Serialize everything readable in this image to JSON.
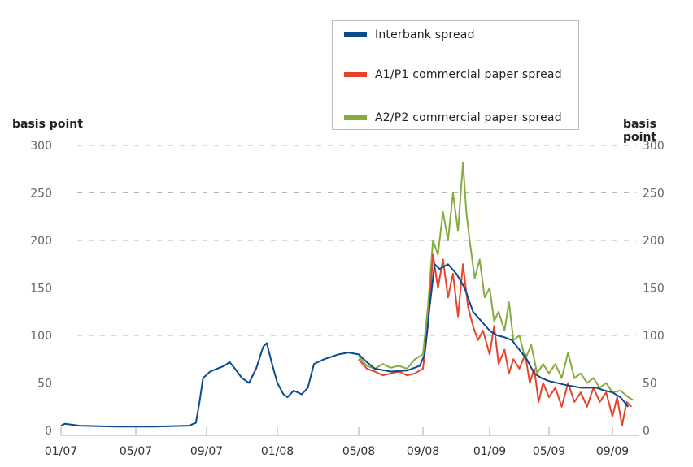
{
  "chart_data": {
    "type": "line",
    "title": "",
    "ylabel_left": "basis point",
    "ylabel_right": "basis point",
    "xlabel": "",
    "ylim": [
      0,
      300
    ],
    "yticks": [
      "0",
      "50",
      "100",
      "150",
      "200",
      "250",
      "300"
    ],
    "ytick_values": [
      0,
      50,
      100,
      150,
      200,
      250,
      300
    ],
    "x_unit": "months since 01/2007",
    "xlim": [
      0,
      33.5
    ],
    "xticks": [
      {
        "label": "01/07",
        "month": 0
      },
      {
        "label": "05/07",
        "month": 4
      },
      {
        "label": "09/07",
        "month": 8
      },
      {
        "label": "01/08",
        "month": 12
      },
      {
        "label": "05/08",
        "month": 16
      },
      {
        "label": "09/08",
        "month": 20
      },
      {
        "label": "01/09",
        "month": 24
      },
      {
        "label": "05/09",
        "month": 28
      },
      {
        "label": "09/09",
        "month": 32
      }
    ],
    "grid": "horizontal dashed",
    "legend_position": "top-right",
    "series": [
      {
        "name": "Interbank spread",
        "color": "#0b4a8e",
        "points": [
          [
            0,
            5
          ],
          [
            0.2,
            7
          ],
          [
            1,
            5
          ],
          [
            3,
            4
          ],
          [
            5,
            4
          ],
          [
            7,
            5
          ],
          [
            7.4,
            8
          ],
          [
            7.6,
            30
          ],
          [
            7.8,
            55
          ],
          [
            8.2,
            62
          ],
          [
            8.6,
            65
          ],
          [
            9,
            68
          ],
          [
            9.3,
            72
          ],
          [
            9.6,
            65
          ],
          [
            10,
            55
          ],
          [
            10.4,
            50
          ],
          [
            10.8,
            65
          ],
          [
            11.2,
            88
          ],
          [
            11.4,
            92
          ],
          [
            11.7,
            70
          ],
          [
            12,
            50
          ],
          [
            12.3,
            38
          ],
          [
            12.5,
            35
          ],
          [
            12.8,
            42
          ],
          [
            13.2,
            38
          ],
          [
            13.5,
            45
          ],
          [
            13.8,
            70
          ],
          [
            14.3,
            75
          ],
          [
            15,
            80
          ],
          [
            15.5,
            82
          ],
          [
            16,
            80
          ],
          [
            16.5,
            72
          ],
          [
            17,
            65
          ],
          [
            18,
            62
          ],
          [
            19,
            63
          ],
          [
            19.8,
            68
          ],
          [
            20.1,
            80
          ],
          [
            20.4,
            130
          ],
          [
            20.7,
            175
          ],
          [
            21,
            170
          ],
          [
            21.5,
            175
          ],
          [
            22,
            165
          ],
          [
            22.5,
            150
          ],
          [
            23,
            125
          ],
          [
            23.5,
            115
          ],
          [
            24,
            105
          ],
          [
            24.5,
            100
          ],
          [
            25,
            98
          ],
          [
            25.5,
            95
          ],
          [
            26,
            85
          ],
          [
            26.5,
            75
          ],
          [
            27,
            60
          ],
          [
            27.5,
            55
          ],
          [
            28,
            52
          ],
          [
            29,
            48
          ],
          [
            30,
            45
          ],
          [
            31,
            45
          ],
          [
            31.5,
            42
          ],
          [
            32,
            40
          ],
          [
            32.5,
            35
          ],
          [
            33,
            25
          ]
        ]
      },
      {
        "name": "A1/P1 commercial paper spread",
        "color": "#e8432a",
        "points": [
          [
            16,
            75
          ],
          [
            16.5,
            65
          ],
          [
            17,
            62
          ],
          [
            17.5,
            58
          ],
          [
            18,
            60
          ],
          [
            18.5,
            62
          ],
          [
            19,
            58
          ],
          [
            19.5,
            60
          ],
          [
            20,
            65
          ],
          [
            20.3,
            110
          ],
          [
            20.6,
            185
          ],
          [
            20.9,
            150
          ],
          [
            21.2,
            180
          ],
          [
            21.5,
            140
          ],
          [
            21.8,
            165
          ],
          [
            22.1,
            120
          ],
          [
            22.4,
            175
          ],
          [
            22.7,
            130
          ],
          [
            23,
            110
          ],
          [
            23.3,
            95
          ],
          [
            23.6,
            105
          ],
          [
            24,
            80
          ],
          [
            24.3,
            110
          ],
          [
            24.6,
            70
          ],
          [
            25,
            85
          ],
          [
            25.3,
            60
          ],
          [
            25.6,
            75
          ],
          [
            26,
            65
          ],
          [
            26.4,
            80
          ],
          [
            26.7,
            50
          ],
          [
            27,
            65
          ],
          [
            27.3,
            30
          ],
          [
            27.6,
            50
          ],
          [
            28,
            35
          ],
          [
            28.4,
            45
          ],
          [
            28.8,
            25
          ],
          [
            29.2,
            50
          ],
          [
            29.6,
            30
          ],
          [
            30,
            40
          ],
          [
            30.4,
            25
          ],
          [
            30.8,
            45
          ],
          [
            31.2,
            30
          ],
          [
            31.6,
            40
          ],
          [
            32,
            15
          ],
          [
            32.3,
            35
          ],
          [
            32.6,
            5
          ],
          [
            32.9,
            30
          ],
          [
            33.2,
            25
          ]
        ]
      },
      {
        "name": "A2/P2 commercial paper spread",
        "color": "#86ab3f",
        "points": [
          [
            16,
            78
          ],
          [
            16.5,
            68
          ],
          [
            17,
            65
          ],
          [
            17.5,
            70
          ],
          [
            18,
            66
          ],
          [
            18.5,
            68
          ],
          [
            19,
            65
          ],
          [
            19.5,
            75
          ],
          [
            20,
            80
          ],
          [
            20.3,
            130
          ],
          [
            20.6,
            200
          ],
          [
            20.9,
            185
          ],
          [
            21.2,
            230
          ],
          [
            21.5,
            200
          ],
          [
            21.8,
            250
          ],
          [
            22.1,
            210
          ],
          [
            22.4,
            282
          ],
          [
            22.6,
            230
          ],
          [
            22.8,
            200
          ],
          [
            23.1,
            160
          ],
          [
            23.4,
            180
          ],
          [
            23.7,
            140
          ],
          [
            24,
            150
          ],
          [
            24.3,
            115
          ],
          [
            24.6,
            125
          ],
          [
            25,
            105
          ],
          [
            25.3,
            135
          ],
          [
            25.6,
            95
          ],
          [
            26,
            100
          ],
          [
            26.4,
            75
          ],
          [
            26.8,
            90
          ],
          [
            27.2,
            60
          ],
          [
            27.6,
            70
          ],
          [
            28,
            60
          ],
          [
            28.4,
            70
          ],
          [
            28.8,
            55
          ],
          [
            29.2,
            82
          ],
          [
            29.6,
            55
          ],
          [
            30,
            60
          ],
          [
            30.4,
            50
          ],
          [
            30.8,
            55
          ],
          [
            31.2,
            45
          ],
          [
            31.6,
            50
          ],
          [
            32,
            40
          ],
          [
            32.5,
            42
          ],
          [
            33,
            35
          ],
          [
            33.3,
            32
          ]
        ]
      }
    ]
  }
}
